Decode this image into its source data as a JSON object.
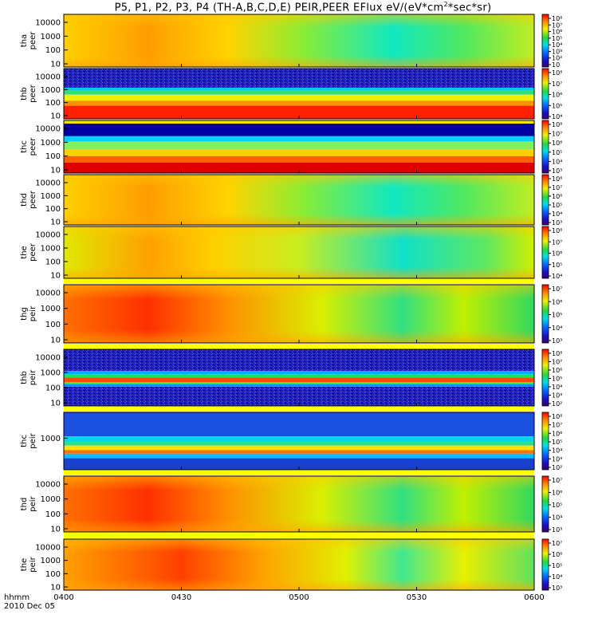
{
  "header": {
    "title_main": "P5, P1, P2, P3, P4 (TH-A,B,C,D,E) PEIR,PEER EFlux eV/(eV*cm",
    "title_sup": "2",
    "title_end": "*sec*sr)"
  },
  "chart_data": {
    "type": "heatmap",
    "title": "P5, P1, P2, P3, P4 (TH-A,B,C,D,E) PEIR,PEER EFlux eV/(eV*cm2*sec*sr)",
    "x_axis": {
      "label_lines": [
        "hhmm",
        "2010 Dec 05"
      ],
      "range": [
        "0400",
        "0600"
      ],
      "ticks": [
        "0400",
        "0430",
        "0500",
        "0530",
        "0600"
      ]
    },
    "colorbar": {
      "scale": "log",
      "colormap": "rainbow (blue-cyan-green-yellow-red)"
    },
    "panels": [
      {
        "label": [
          "tha",
          "peer"
        ],
        "y_ticks": [
          "10",
          "100",
          "1000",
          "10000"
        ],
        "y_scale": "log",
        "cbar_ticks": [
          "10",
          "10²",
          "10³",
          "10⁴",
          "10⁵",
          "10⁶",
          "10⁷",
          "10⁸"
        ],
        "cbar_range": [
          1,
          8
        ]
      },
      {
        "label": [
          "thb",
          "peer"
        ],
        "y_ticks": [
          "10",
          "100",
          "1000",
          "10000"
        ],
        "y_scale": "log",
        "cbar_ticks": [
          "10⁴",
          "10⁵",
          "10⁶",
          "10⁷",
          "10⁸"
        ],
        "cbar_range": [
          3.5,
          8
        ]
      },
      {
        "label": [
          "thc",
          "peer"
        ],
        "y_ticks": [
          "10",
          "100",
          "1000",
          "10000"
        ],
        "y_scale": "log",
        "cbar_ticks": [
          "10³",
          "10⁴",
          "10⁵",
          "10⁶",
          "10⁷",
          "10⁸"
        ],
        "cbar_range": [
          2.6,
          8
        ]
      },
      {
        "label": [
          "thd",
          "peer"
        ],
        "y_ticks": [
          "10",
          "100",
          "1000",
          "10000"
        ],
        "y_scale": "log",
        "cbar_ticks": [
          "10³",
          "10⁴",
          "10⁵",
          "10⁶",
          "10⁷",
          "10⁸"
        ],
        "cbar_range": [
          3,
          8
        ]
      },
      {
        "label": [
          "the",
          "peer"
        ],
        "y_ticks": [
          "10",
          "100",
          "1000",
          "10000"
        ],
        "y_scale": "log",
        "cbar_ticks": [
          "10⁴",
          "10⁵",
          "10⁶",
          "10⁷",
          "10⁸"
        ],
        "cbar_range": [
          3.6,
          8
        ]
      },
      {
        "label": [
          "thg",
          "peir"
        ],
        "y_ticks": [
          "10",
          "100",
          "1000",
          "10000"
        ],
        "y_scale": "log",
        "cbar_ticks": [
          "10³",
          "10⁴",
          "10⁵",
          "10⁶",
          "10⁷"
        ],
        "cbar_range": [
          2.6,
          7.2
        ]
      },
      {
        "label": [
          "thb",
          "peir"
        ],
        "y_ticks": [
          "10",
          "100",
          "1000",
          "10000"
        ],
        "y_scale": "log",
        "cbar_ticks": [
          "10²",
          "10³",
          "10⁴",
          "10⁵",
          "10⁶",
          "10⁷",
          "10⁸"
        ],
        "cbar_range": [
          1.5,
          8
        ]
      },
      {
        "label": [
          "thc",
          "peir"
        ],
        "y_ticks": [
          "1000"
        ],
        "y_scale": "log",
        "cbar_ticks": [
          "10²",
          "10³",
          "10⁴",
          "10⁵",
          "10⁶",
          "10⁷",
          "10⁸"
        ],
        "cbar_range": [
          1.5,
          8
        ]
      },
      {
        "label": [
          "thd",
          "peir"
        ],
        "y_ticks": [
          "10",
          "100",
          "1000",
          "10000"
        ],
        "y_scale": "log",
        "cbar_ticks": [
          "10³",
          "10⁴",
          "10⁵",
          "10⁶",
          "10⁷"
        ],
        "cbar_range": [
          2.5,
          7.2
        ]
      },
      {
        "label": [
          "the",
          "peir"
        ],
        "y_ticks": [
          "10",
          "100",
          "1000",
          "10000"
        ],
        "y_scale": "log",
        "cbar_ticks": [
          "10³",
          "10⁴",
          "10⁵",
          "10⁶",
          "10⁷"
        ],
        "cbar_range": [
          2.5,
          7.2
        ]
      }
    ]
  }
}
